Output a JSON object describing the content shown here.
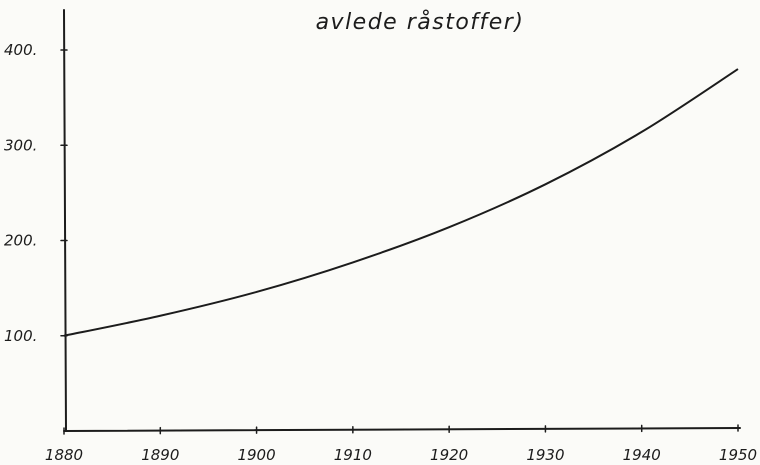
{
  "chart_data": {
    "type": "line",
    "title": "avlede råstoffer)",
    "x": [
      1880,
      1890,
      1900,
      1910,
      1920,
      1930,
      1940,
      1950
    ],
    "series": [
      {
        "values": [
          100,
          121,
          146,
          177,
          214,
          259,
          314,
          380
        ]
      }
    ],
    "xticks": [
      "1880",
      "1890",
      "1900",
      "1910",
      "1920",
      "1930",
      "1940",
      "1950"
    ],
    "yticks": [
      "100.",
      "200.",
      "300.",
      "400."
    ],
    "ytick_values": [
      100,
      200,
      300,
      400
    ],
    "xlim": [
      1880,
      1950
    ],
    "ylim": [
      0,
      400
    ],
    "grid": false,
    "colors": {
      "ink": "#1c1c1c",
      "paper": "#fbfbf8"
    }
  }
}
